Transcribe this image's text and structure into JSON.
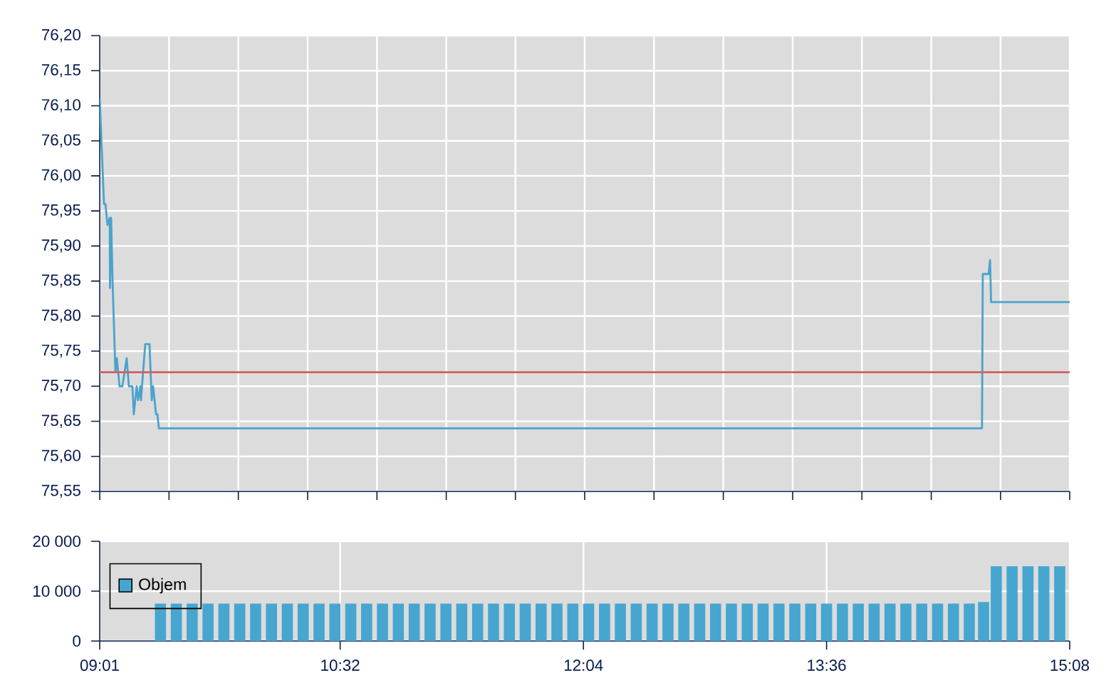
{
  "chart_data": [
    {
      "type": "line",
      "x": [
        9.017,
        9.044,
        9.053,
        9.066,
        9.08,
        9.082,
        9.089,
        9.098,
        9.116,
        9.125,
        9.142,
        9.16,
        9.187,
        9.201,
        9.223,
        9.232,
        9.25,
        9.259,
        9.273,
        9.277,
        9.304,
        9.331,
        9.345,
        9.354,
        9.372,
        9.381,
        9.39,
        14.58,
        14.585,
        14.622,
        14.631,
        14.637,
        15.133
      ],
      "series": [
        {
          "color": "#4aa3cc",
          "values": [
            76.11,
            75.96,
            75.96,
            75.93,
            75.94,
            75.84,
            75.94,
            75.85,
            75.72,
            75.74,
            75.7,
            75.7,
            75.74,
            75.7,
            75.7,
            75.66,
            75.7,
            75.68,
            75.7,
            75.68,
            75.76,
            75.76,
            75.68,
            75.7,
            75.66,
            75.66,
            75.64,
            75.64,
            75.86,
            75.86,
            75.88,
            75.82,
            75.82
          ]
        }
      ],
      "xlim": [
        9.017,
        15.133
      ],
      "xticks": [
        {
          "value": 9.017,
          "label": null
        },
        {
          "value": 9.454,
          "label": null
        },
        {
          "value": 9.891,
          "label": null
        },
        {
          "value": 10.328,
          "label": null
        },
        {
          "value": 10.765,
          "label": null
        },
        {
          "value": 11.202,
          "label": null
        },
        {
          "value": 11.638,
          "label": null
        },
        {
          "value": 12.075,
          "label": null
        },
        {
          "value": 12.512,
          "label": null
        },
        {
          "value": 12.949,
          "label": null
        },
        {
          "value": 13.386,
          "label": null
        },
        {
          "value": 13.823,
          "label": null
        },
        {
          "value": 14.26,
          "label": null
        },
        {
          "value": 14.697,
          "label": null
        },
        {
          "value": 15.133,
          "label": null
        }
      ],
      "ylim": [
        75.55,
        76.2
      ],
      "yticks": [
        {
          "value": 75.55,
          "label": "75,55"
        },
        {
          "value": 75.6,
          "label": "75,60"
        },
        {
          "value": 75.65,
          "label": "75,65"
        },
        {
          "value": 75.7,
          "label": "75,70"
        },
        {
          "value": 75.75,
          "label": "75,75"
        },
        {
          "value": 75.8,
          "label": "75,80"
        },
        {
          "value": 75.85,
          "label": "75,85"
        },
        {
          "value": 75.9,
          "label": "75,90"
        },
        {
          "value": 75.95,
          "label": "75,95"
        },
        {
          "value": 76.0,
          "label": "76,00"
        },
        {
          "value": 76.05,
          "label": "76,05"
        },
        {
          "value": 76.1,
          "label": "76,10"
        },
        {
          "value": 76.15,
          "label": "76,15"
        },
        {
          "value": 76.2,
          "label": "76,20"
        }
      ],
      "ref_lines": [
        {
          "axis": "y",
          "value": 75.72,
          "color": "#d06060"
        }
      ],
      "grid": true,
      "tick_labels": "y"
    },
    {
      "type": "bar",
      "x": [
        9.4,
        9.5,
        9.6,
        9.7,
        9.8,
        9.9,
        10.0,
        10.1,
        10.2,
        10.3,
        10.4,
        10.5,
        10.6,
        10.7,
        10.8,
        10.9,
        11.0,
        11.1,
        11.2,
        11.3,
        11.4,
        11.5,
        11.6,
        11.7,
        11.8,
        11.9,
        12.0,
        12.1,
        12.2,
        12.3,
        12.4,
        12.5,
        12.6,
        12.7,
        12.8,
        12.9,
        13.0,
        13.1,
        13.2,
        13.3,
        13.4,
        13.5,
        13.6,
        13.7,
        13.8,
        13.9,
        14.0,
        14.1,
        14.2,
        14.3,
        14.4,
        14.5,
        14.59,
        14.67,
        14.77,
        14.87,
        14.97,
        15.07
      ],
      "series": [
        {
          "name": "Objem",
          "color": "#46a6cf",
          "values": [
            7500,
            7500,
            7500,
            7500,
            7500,
            7500,
            7500,
            7500,
            7500,
            7500,
            7500,
            7500,
            7500,
            7500,
            7500,
            7500,
            7500,
            7500,
            7500,
            7500,
            7500,
            7500,
            7500,
            7500,
            7500,
            7500,
            7500,
            7500,
            7500,
            7500,
            7500,
            7500,
            7500,
            7500,
            7500,
            7500,
            7500,
            7500,
            7500,
            7500,
            7500,
            7500,
            7500,
            7500,
            7500,
            7500,
            7500,
            7500,
            7500,
            7500,
            7500,
            7500,
            7800,
            15000,
            15000,
            15000,
            15000,
            15000
          ]
        }
      ],
      "xlim": [
        9.017,
        15.133
      ],
      "xticks": [
        {
          "value": 9.017,
          "label": "09:01"
        },
        {
          "value": 10.533,
          "label": "10:32"
        },
        {
          "value": 12.067,
          "label": "12:04"
        },
        {
          "value": 13.6,
          "label": "13:36"
        },
        {
          "value": 15.133,
          "label": "15:08"
        }
      ],
      "ylim": [
        0,
        20000
      ],
      "yticks": [
        {
          "value": 0,
          "label": "0"
        },
        {
          "value": 10000,
          "label": "10 000"
        },
        {
          "value": 20000,
          "label": "20 000"
        }
      ],
      "grid": true,
      "legend": "left"
    }
  ]
}
